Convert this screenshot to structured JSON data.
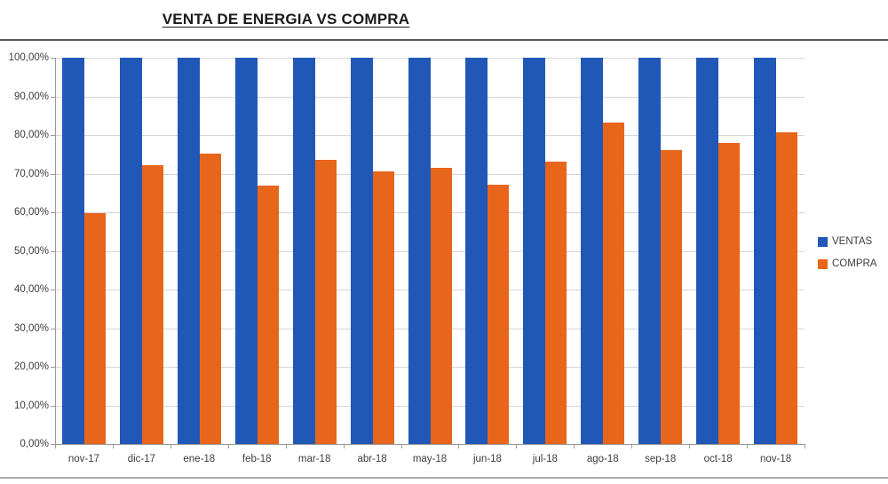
{
  "chart_data": {
    "type": "bar",
    "title": "VENTA DE ENERGIA VS COMPRA",
    "categories": [
      "nov-17",
      "dic-17",
      "ene-18",
      "feb-18",
      "mar-18",
      "abr-18",
      "may-18",
      "jun-18",
      "jul-18",
      "ago-18",
      "sep-18",
      "oct-18",
      "nov-18"
    ],
    "series": [
      {
        "name": "VENTAS",
        "color": "#2158b8",
        "values": [
          100,
          100,
          100,
          100,
          100,
          100,
          100,
          100,
          100,
          100,
          100,
          100,
          100
        ]
      },
      {
        "name": "COMPRA",
        "color": "#e8651c",
        "values": [
          59.8,
          72.1,
          75.1,
          66.9,
          73.5,
          70.5,
          71.5,
          67.1,
          73.0,
          83.2,
          76.0,
          77.9,
          80.6
        ]
      }
    ],
    "xlabel": "",
    "ylabel": "",
    "ylim": [
      0,
      100
    ],
    "y_tick_step": 10,
    "y_tick_labels": [
      "0,00%",
      "10,00%",
      "20,00%",
      "30,00%",
      "40,00%",
      "50,00%",
      "60,00%",
      "70,00%",
      "80,00%",
      "90,00%",
      "100,00%"
    ],
    "grid": true,
    "legend_position": "right"
  },
  "colors": {
    "gridline": "#d6d6d6",
    "axis": "#999999",
    "tick_text": "#3d3d3d",
    "top_border": "#595959",
    "bottom_border": "#ababab"
  }
}
